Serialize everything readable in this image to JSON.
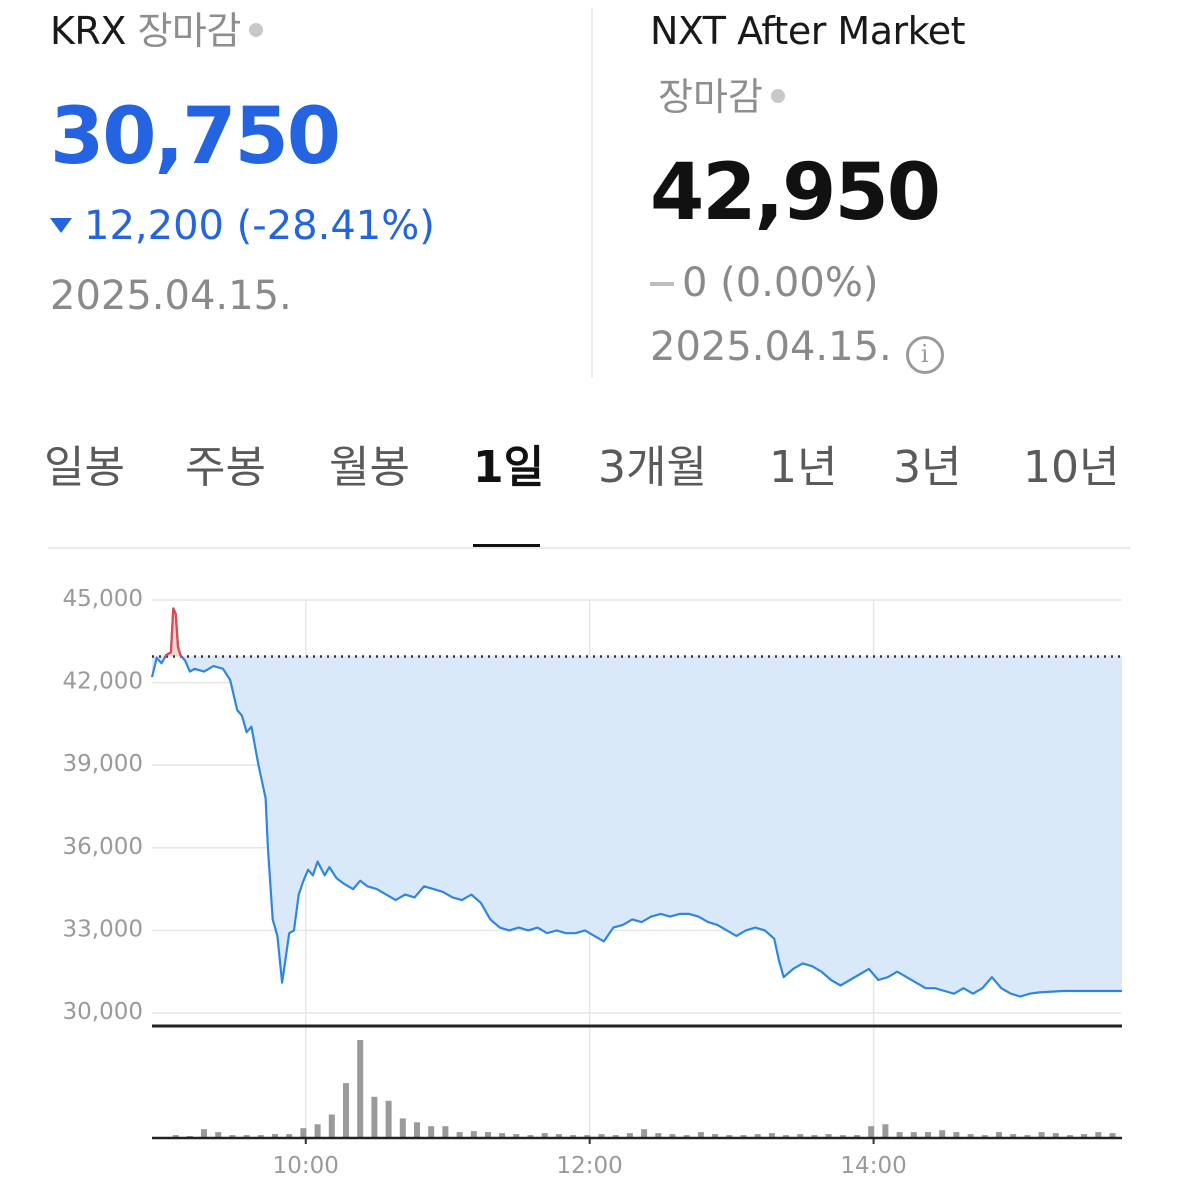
{
  "krx": {
    "market": "KRX",
    "status": "장마감",
    "price": "30,750",
    "change": "12,200 (-28.41%)",
    "direction": "down",
    "date": "2025.04.15.",
    "color": "#2464e0"
  },
  "nxt": {
    "market": "NXT After Market",
    "status": "장마감",
    "price": "42,950",
    "change": "0 (0.00%)",
    "direction": "flat",
    "date": "2025.04.15.",
    "info_icon": "info-icon"
  },
  "tabs": [
    {
      "label": "일봉",
      "active": false
    },
    {
      "label": "주봉",
      "active": false
    },
    {
      "label": "월봉",
      "active": false
    },
    {
      "label": "1일",
      "active": true
    },
    {
      "label": "3개월",
      "active": false
    },
    {
      "label": "1년",
      "active": false
    },
    {
      "label": "3년",
      "active": false
    },
    {
      "label": "10년",
      "active": false
    }
  ],
  "chart_data": {
    "type": "area",
    "title": "",
    "xlabel": "",
    "ylabel": "",
    "ylim": [
      30000,
      45000
    ],
    "y_ticks": [
      "45,000",
      "42,000",
      "39,000",
      "36,000",
      "33,000",
      "30,000"
    ],
    "x_ticks": [
      "10:00",
      "12:00",
      "14:00"
    ],
    "x_range": [
      "08:55",
      "15:45"
    ],
    "reference_price": 42950,
    "grid": true,
    "colors": {
      "line": "#2f86e0",
      "fill": "#d9e9fa",
      "above_ref": "#e04a4a",
      "volume": "#9a9a9a",
      "reference": "#333333"
    },
    "series": [
      {
        "values": [
          [
            "08:55",
            42200
          ],
          [
            "08:57",
            42900
          ],
          [
            "08:59",
            42700
          ],
          [
            "09:01",
            43000
          ],
          [
            "09:03",
            43100
          ],
          [
            "09:04",
            44700
          ],
          [
            "09:05",
            44500
          ],
          [
            "09:06",
            43300
          ],
          [
            "09:07",
            43000
          ],
          [
            "09:09",
            42800
          ],
          [
            "09:11",
            42400
          ],
          [
            "09:13",
            42500
          ],
          [
            "09:17",
            42400
          ],
          [
            "09:21",
            42600
          ],
          [
            "09:25",
            42500
          ],
          [
            "09:28",
            42100
          ],
          [
            "09:31",
            41000
          ],
          [
            "09:33",
            40800
          ],
          [
            "09:35",
            40200
          ],
          [
            "09:37",
            40400
          ],
          [
            "09:40",
            39000
          ],
          [
            "09:43",
            37800
          ],
          [
            "09:44",
            36000
          ],
          [
            "09:46",
            33400
          ],
          [
            "09:48",
            32800
          ],
          [
            "09:50",
            31100
          ],
          [
            "09:51",
            31700
          ],
          [
            "09:53",
            32900
          ],
          [
            "09:55",
            33000
          ],
          [
            "09:57",
            34300
          ],
          [
            "09:59",
            34800
          ],
          [
            "10:01",
            35200
          ],
          [
            "10:03",
            35000
          ],
          [
            "10:05",
            35500
          ],
          [
            "10:08",
            35000
          ],
          [
            "10:10",
            35300
          ],
          [
            "10:13",
            34900
          ],
          [
            "10:16",
            34700
          ],
          [
            "10:20",
            34500
          ],
          [
            "10:23",
            34800
          ],
          [
            "10:26",
            34600
          ],
          [
            "10:30",
            34500
          ],
          [
            "10:34",
            34300
          ],
          [
            "10:38",
            34100
          ],
          [
            "10:42",
            34300
          ],
          [
            "10:46",
            34200
          ],
          [
            "10:50",
            34600
          ],
          [
            "10:54",
            34500
          ],
          [
            "10:58",
            34400
          ],
          [
            "11:02",
            34200
          ],
          [
            "11:06",
            34100
          ],
          [
            "11:10",
            34300
          ],
          [
            "11:14",
            34000
          ],
          [
            "11:18",
            33400
          ],
          [
            "11:22",
            33100
          ],
          [
            "11:26",
            33000
          ],
          [
            "11:30",
            33100
          ],
          [
            "11:34",
            33000
          ],
          [
            "11:38",
            33100
          ],
          [
            "11:42",
            32900
          ],
          [
            "11:46",
            33000
          ],
          [
            "11:50",
            32900
          ],
          [
            "11:54",
            32900
          ],
          [
            "11:58",
            33000
          ],
          [
            "12:02",
            32800
          ],
          [
            "12:06",
            32600
          ],
          [
            "12:10",
            33100
          ],
          [
            "12:14",
            33200
          ],
          [
            "12:18",
            33400
          ],
          [
            "12:22",
            33300
          ],
          [
            "12:26",
            33500
          ],
          [
            "12:30",
            33600
          ],
          [
            "12:34",
            33500
          ],
          [
            "12:38",
            33600
          ],
          [
            "12:42",
            33600
          ],
          [
            "12:46",
            33500
          ],
          [
            "12:50",
            33300
          ],
          [
            "12:54",
            33200
          ],
          [
            "12:58",
            33000
          ],
          [
            "13:02",
            32800
          ],
          [
            "13:06",
            33000
          ],
          [
            "13:10",
            33100
          ],
          [
            "13:14",
            33000
          ],
          [
            "13:18",
            32700
          ],
          [
            "13:20",
            31900
          ],
          [
            "13:22",
            31300
          ],
          [
            "13:26",
            31600
          ],
          [
            "13:30",
            31800
          ],
          [
            "13:34",
            31700
          ],
          [
            "13:38",
            31500
          ],
          [
            "13:42",
            31200
          ],
          [
            "13:46",
            31000
          ],
          [
            "13:50",
            31200
          ],
          [
            "13:54",
            31400
          ],
          [
            "13:58",
            31600
          ],
          [
            "14:02",
            31200
          ],
          [
            "14:06",
            31300
          ],
          [
            "14:10",
            31500
          ],
          [
            "14:14",
            31300
          ],
          [
            "14:18",
            31100
          ],
          [
            "14:22",
            30900
          ],
          [
            "14:26",
            30900
          ],
          [
            "14:30",
            30800
          ],
          [
            "14:34",
            30700
          ],
          [
            "14:38",
            30900
          ],
          [
            "14:42",
            30700
          ],
          [
            "14:46",
            30900
          ],
          [
            "14:50",
            31300
          ],
          [
            "14:54",
            30900
          ],
          [
            "14:58",
            30700
          ],
          [
            "15:02",
            30600
          ],
          [
            "15:06",
            30700
          ],
          [
            "15:10",
            30750
          ],
          [
            "15:20",
            30800
          ],
          [
            "15:30",
            30800
          ],
          [
            "15:45",
            30800
          ]
        ]
      }
    ],
    "volume": [
      [
        "09:05",
        3
      ],
      [
        "09:11",
        2
      ],
      [
        "09:17",
        9
      ],
      [
        "09:23",
        6
      ],
      [
        "09:29",
        3
      ],
      [
        "09:35",
        3
      ],
      [
        "09:41",
        3
      ],
      [
        "09:47",
        4
      ],
      [
        "09:53",
        4
      ],
      [
        "09:59",
        10
      ],
      [
        "10:05",
        14
      ],
      [
        "10:11",
        24
      ],
      [
        "10:17",
        56
      ],
      [
        "10:23",
        100
      ],
      [
        "10:29",
        42
      ],
      [
        "10:35",
        38
      ],
      [
        "10:41",
        20
      ],
      [
        "10:47",
        16
      ],
      [
        "10:53",
        12
      ],
      [
        "10:59",
        12
      ],
      [
        "11:05",
        6
      ],
      [
        "11:11",
        7
      ],
      [
        "11:17",
        6
      ],
      [
        "11:23",
        5
      ],
      [
        "11:29",
        4
      ],
      [
        "11:35",
        3
      ],
      [
        "11:41",
        5
      ],
      [
        "11:47",
        4
      ],
      [
        "11:53",
        3
      ],
      [
        "11:59",
        3
      ],
      [
        "12:05",
        4
      ],
      [
        "12:11",
        3
      ],
      [
        "12:17",
        5
      ],
      [
        "12:23",
        9
      ],
      [
        "12:29",
        5
      ],
      [
        "12:35",
        4
      ],
      [
        "12:41",
        3
      ],
      [
        "12:47",
        6
      ],
      [
        "12:53",
        4
      ],
      [
        "12:59",
        3
      ],
      [
        "13:05",
        3
      ],
      [
        "13:11",
        4
      ],
      [
        "13:17",
        5
      ],
      [
        "13:23",
        3
      ],
      [
        "13:29",
        4
      ],
      [
        "13:35",
        3
      ],
      [
        "13:41",
        4
      ],
      [
        "13:47",
        3
      ],
      [
        "13:53",
        3
      ],
      [
        "13:59",
        12
      ],
      [
        "14:05",
        14
      ],
      [
        "14:11",
        6
      ],
      [
        "14:17",
        6
      ],
      [
        "14:23",
        6
      ],
      [
        "14:29",
        8
      ],
      [
        "14:35",
        6
      ],
      [
        "14:41",
        4
      ],
      [
        "14:47",
        3
      ],
      [
        "14:53",
        6
      ],
      [
        "14:59",
        4
      ],
      [
        "15:05",
        3
      ],
      [
        "15:11",
        6
      ],
      [
        "15:17",
        5
      ],
      [
        "15:23",
        3
      ],
      [
        "15:29",
        4
      ],
      [
        "15:35",
        6
      ],
      [
        "15:41",
        5
      ]
    ]
  }
}
